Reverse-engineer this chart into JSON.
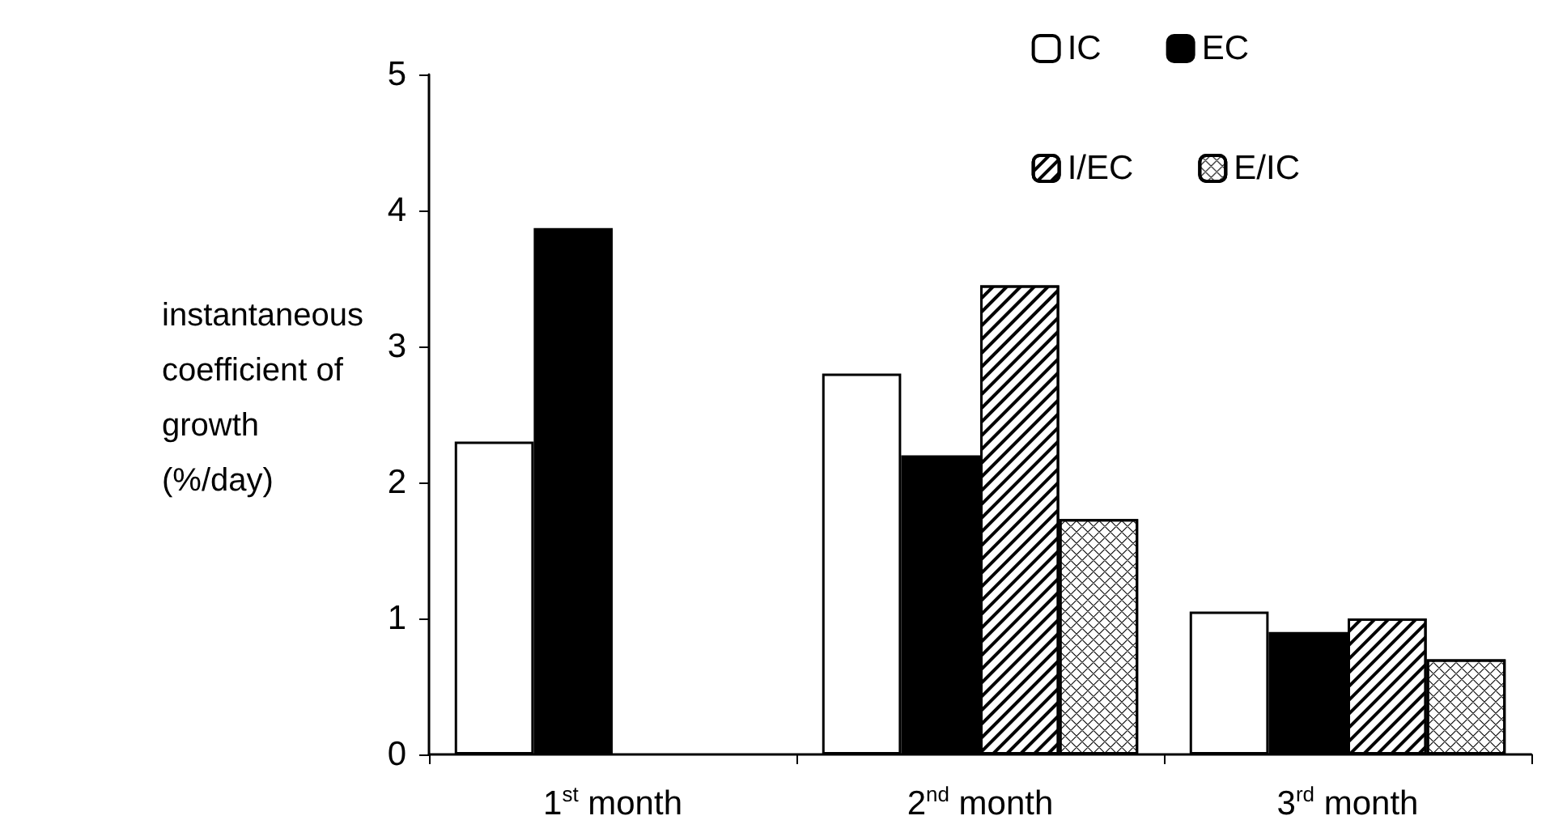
{
  "chart_data": {
    "type": "bar",
    "ylabel": "instantaneous\ncoefficient of\ngrowth\n(%/day)",
    "categories": [
      "1$^{st}$ month",
      "2$^{nd}$ month",
      "3$^{rd}$ month"
    ],
    "series": [
      {
        "name": "IC",
        "color": "#ffffff",
        "values": [
          2.3,
          2.8,
          1.05
        ]
      },
      {
        "name": "EC",
        "color": "#000000",
        "values": [
          3.87,
          2.2,
          0.9
        ]
      },
      {
        "name": "I/EC",
        "color": "#ffffff",
        "values": [
          null,
          3.45,
          1.0
        ]
      },
      {
        "name": "E/IC",
        "color": "#ffffff",
        "values": [
          null,
          1.73,
          0.7
        ]
      }
    ],
    "ylim": [
      0,
      5
    ],
    "yticks": [
      0,
      1,
      2,
      3,
      4,
      5
    ],
    "grid": false,
    "legend": "top right"
  }
}
